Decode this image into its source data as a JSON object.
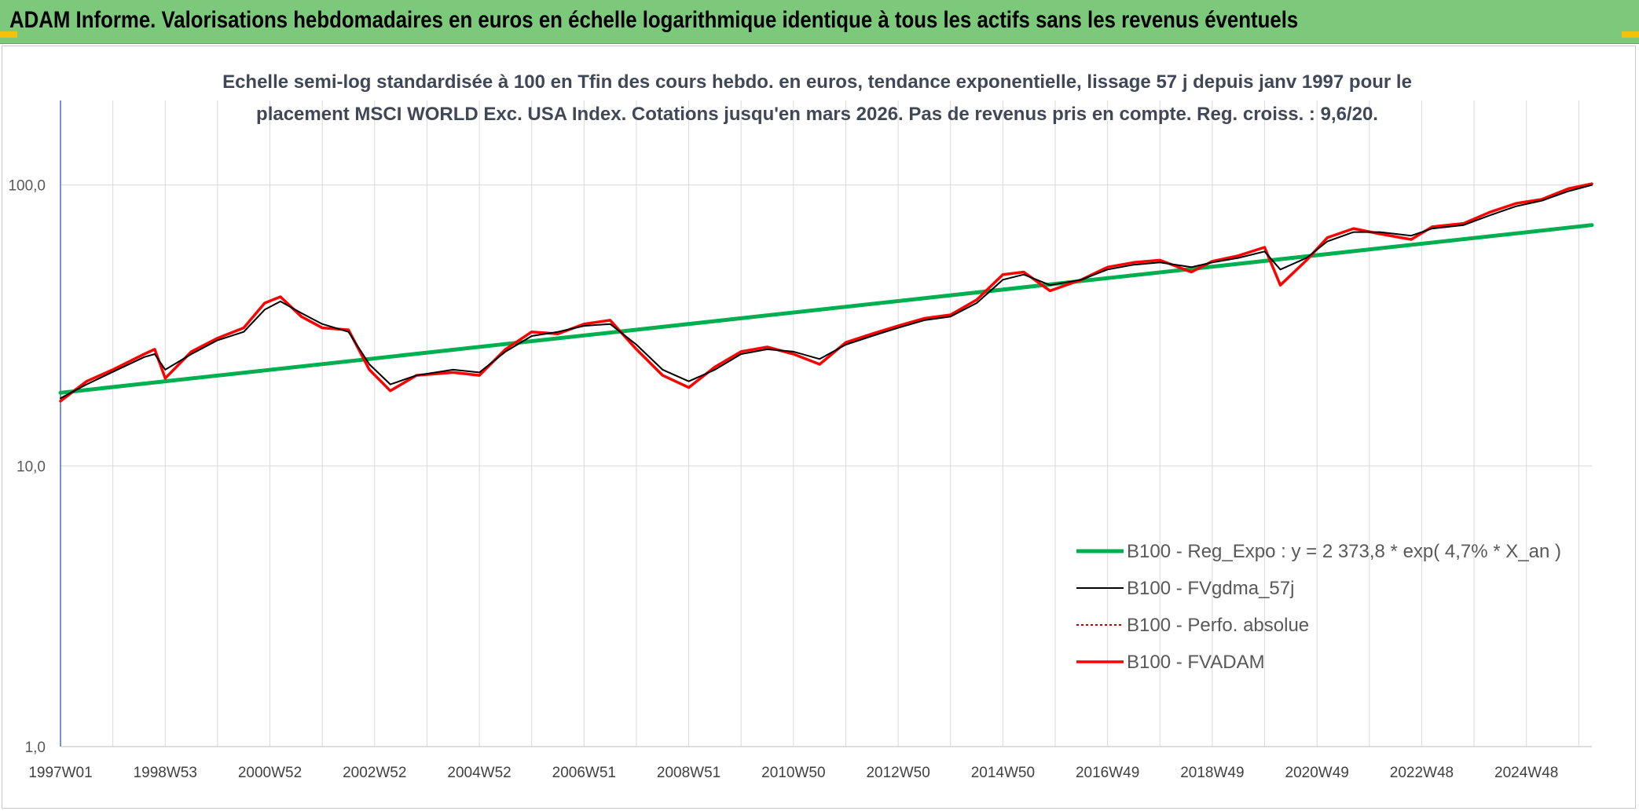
{
  "header": {
    "title": "ADAM Informe. Valorisations hebdomadaires en euros en échelle logarithmique identique à tous les actifs sans les revenus éventuels"
  },
  "colors": {
    "header_bg": "#7dc97b",
    "regression": "#00b050",
    "fvgdma": "#000000",
    "perfo": "#c00000",
    "fvadam": "#ff0000"
  },
  "chart_data": {
    "type": "line",
    "title_lines": [
      "Echelle semi-log standardisée à 100 en Tfin des cours hebdo. en euros, tendance exponentielle, lissage 57 j depuis janv 1997 pour le",
      "placement MSCI WORLD Exc. USA Index. Cotations jusqu'en mars 2026. Pas de revenus pris en compte. Reg. croiss. : 9,6/20."
    ],
    "y_scale": "log",
    "ylim": [
      1,
      200
    ],
    "xlim": [
      1997.0,
      2026.25
    ],
    "y_ticks": [
      {
        "value": 1,
        "label": "1,0"
      },
      {
        "value": 10,
        "label": "10,0"
      },
      {
        "value": 100,
        "label": "100,0"
      }
    ],
    "x_ticks": [
      {
        "x": 1997.0,
        "label": "1997W01"
      },
      {
        "x": 1999.0,
        "label": "1998W53"
      },
      {
        "x": 2001.0,
        "label": "2000W52"
      },
      {
        "x": 2003.0,
        "label": "2002W52"
      },
      {
        "x": 2005.0,
        "label": "2004W52"
      },
      {
        "x": 2007.0,
        "label": "2006W51"
      },
      {
        "x": 2009.0,
        "label": "2008W51"
      },
      {
        "x": 2011.0,
        "label": "2010W50"
      },
      {
        "x": 2013.0,
        "label": "2012W50"
      },
      {
        "x": 2015.0,
        "label": "2014W50"
      },
      {
        "x": 2017.0,
        "label": "2016W49"
      },
      {
        "x": 2019.0,
        "label": "2018W49"
      },
      {
        "x": 2021.0,
        "label": "2020W49"
      },
      {
        "x": 2023.0,
        "label": "2022W48"
      },
      {
        "x": 2025.0,
        "label": "2024W48"
      }
    ],
    "grid": "vertical and horizontal",
    "legend_position": "bottom-right",
    "series": [
      {
        "name": "B100 - Reg_Expo : y = 2 373,8 * exp( 4,7% *  X_an )",
        "key": "regression",
        "color": "#00b050",
        "style": "solid-thick",
        "x": [
          1997.0,
          2026.25
        ],
        "y": [
          18.2,
          72.0
        ]
      },
      {
        "name": "B100 - FVgdma_57j",
        "key": "fvgdma",
        "color": "#000000",
        "style": "solid-thin",
        "x": [
          1997.0,
          1997.5,
          1998.0,
          1998.6,
          1998.8,
          1999.0,
          1999.5,
          2000.0,
          2000.5,
          2000.9,
          2001.2,
          2001.6,
          2002.0,
          2002.5,
          2002.9,
          2003.3,
          2003.8,
          2004.5,
          2005.0,
          2005.5,
          2006.0,
          2006.5,
          2007.0,
          2007.5,
          2008.0,
          2008.5,
          2009.0,
          2009.5,
          2010.0,
          2010.5,
          2011.0,
          2011.5,
          2012.0,
          2012.5,
          2013.0,
          2013.5,
          2014.0,
          2014.5,
          2015.0,
          2015.4,
          2015.9,
          2016.5,
          2017.0,
          2017.5,
          2018.0,
          2018.6,
          2019.0,
          2019.5,
          2020.0,
          2020.3,
          2020.8,
          2021.2,
          2021.7,
          2022.2,
          2022.8,
          2023.2,
          2023.8,
          2024.3,
          2024.8,
          2025.3,
          2025.8,
          2026.25
        ],
        "y": [
          17.4,
          19.5,
          21.6,
          24.4,
          25.0,
          22.0,
          25.0,
          28.0,
          30.0,
          36.0,
          38.5,
          35.0,
          32.0,
          30.0,
          23.0,
          19.5,
          21.0,
          22.0,
          21.5,
          25.5,
          29.0,
          30.0,
          31.5,
          32.0,
          27.0,
          22.0,
          20.0,
          22.0,
          25.0,
          26.0,
          25.5,
          24.0,
          27.0,
          29.0,
          31.0,
          33.0,
          34.0,
          38.0,
          46.0,
          48.0,
          44.0,
          46.0,
          50.0,
          52.0,
          53.0,
          51.0,
          53.0,
          55.0,
          58.0,
          50.0,
          55.0,
          63.0,
          68.0,
          68.0,
          66.0,
          70.0,
          72.0,
          78.0,
          84.0,
          88.0,
          95.0,
          100.0
        ]
      },
      {
        "name": "B100 - Perfo. absolue",
        "key": "perfo",
        "color": "#c00000",
        "style": "dotted",
        "x": [
          1997.0,
          1997.5,
          1998.0,
          1998.6,
          1998.8,
          1999.0,
          1999.5,
          2000.0,
          2000.5,
          2000.9,
          2001.2,
          2001.6,
          2002.0,
          2002.5,
          2002.9,
          2003.3,
          2003.8,
          2004.5,
          2005.0,
          2005.5,
          2006.0,
          2006.5,
          2007.0,
          2007.5,
          2008.0,
          2008.5,
          2009.0,
          2009.5,
          2010.0,
          2010.5,
          2011.0,
          2011.5,
          2012.0,
          2012.5,
          2013.0,
          2013.5,
          2014.0,
          2014.5,
          2015.0,
          2015.4,
          2015.9,
          2016.5,
          2017.0,
          2017.5,
          2018.0,
          2018.6,
          2019.0,
          2019.5,
          2020.0,
          2020.3,
          2020.8,
          2021.2,
          2021.7,
          2022.2,
          2022.8,
          2023.2,
          2023.8,
          2024.3,
          2024.8,
          2025.3,
          2025.8,
          2026.25
        ],
        "y": [
          17.0,
          20.0,
          22.0,
          25.0,
          26.0,
          20.5,
          25.5,
          28.5,
          31.0,
          38.0,
          40.0,
          34.0,
          31.0,
          30.5,
          22.0,
          18.5,
          21.0,
          21.5,
          21.0,
          26.0,
          30.0,
          29.5,
          32.0,
          33.0,
          26.0,
          21.0,
          19.0,
          22.5,
          25.5,
          26.5,
          25.0,
          23.0,
          27.5,
          29.5,
          31.5,
          33.5,
          34.5,
          39.0,
          48.0,
          49.0,
          42.0,
          46.0,
          51.0,
          53.0,
          54.0,
          49.0,
          53.5,
          56.0,
          60.0,
          44.0,
          54.0,
          65.0,
          70.0,
          67.0,
          64.0,
          71.0,
          73.0,
          80.0,
          86.0,
          89.0,
          97.0,
          101.0
        ]
      },
      {
        "name": "B100 - FVADAM",
        "key": "fvadam",
        "color": "#ff0000",
        "style": "solid-medium",
        "x": [
          1997.0,
          1997.5,
          1998.0,
          1998.6,
          1998.8,
          1999.0,
          1999.5,
          2000.0,
          2000.5,
          2000.9,
          2001.2,
          2001.6,
          2002.0,
          2002.5,
          2002.9,
          2003.3,
          2003.8,
          2004.5,
          2005.0,
          2005.5,
          2006.0,
          2006.5,
          2007.0,
          2007.5,
          2008.0,
          2008.5,
          2009.0,
          2009.5,
          2010.0,
          2010.5,
          2011.0,
          2011.5,
          2012.0,
          2012.5,
          2013.0,
          2013.5,
          2014.0,
          2014.5,
          2015.0,
          2015.4,
          2015.9,
          2016.5,
          2017.0,
          2017.5,
          2018.0,
          2018.6,
          2019.0,
          2019.5,
          2020.0,
          2020.3,
          2020.8,
          2021.2,
          2021.7,
          2022.2,
          2022.8,
          2023.2,
          2023.8,
          2024.3,
          2024.8,
          2025.3,
          2025.8,
          2026.25
        ],
        "y": [
          17.0,
          20.0,
          22.0,
          25.0,
          26.0,
          20.5,
          25.5,
          28.5,
          31.0,
          38.0,
          40.0,
          34.0,
          31.0,
          30.5,
          22.0,
          18.5,
          21.0,
          21.5,
          21.0,
          26.0,
          30.0,
          29.5,
          32.0,
          33.0,
          26.0,
          21.0,
          19.0,
          22.5,
          25.5,
          26.5,
          25.0,
          23.0,
          27.5,
          29.5,
          31.5,
          33.5,
          34.5,
          39.0,
          48.0,
          49.0,
          42.0,
          46.0,
          51.0,
          53.0,
          54.0,
          49.0,
          53.5,
          56.0,
          60.0,
          44.0,
          54.0,
          65.0,
          70.0,
          67.0,
          64.0,
          71.0,
          73.0,
          80.0,
          86.0,
          89.0,
          97.0,
          101.0
        ]
      }
    ]
  }
}
